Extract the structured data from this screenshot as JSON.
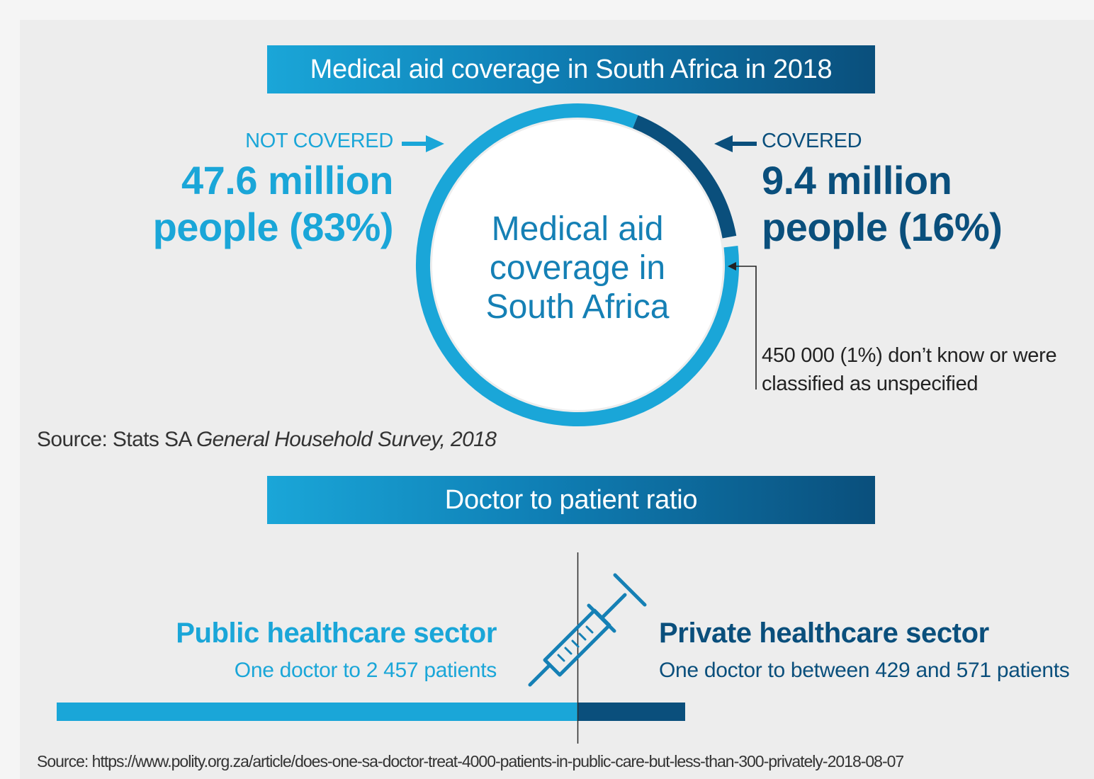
{
  "colors": {
    "light_blue": "#1aa6d8",
    "dark_blue": "#0a4f7c",
    "background": "#ededed"
  },
  "coverage": {
    "banner_title": "Medical aid coverage in South Africa in 2018",
    "center_label_lines": [
      "Medical aid",
      "coverage in",
      "South Africa"
    ],
    "not_covered": {
      "label": "NOT COVERED",
      "line1": "47.6 million",
      "line2": "people (83%)"
    },
    "covered": {
      "label": "COVERED",
      "line1": "9.4 million",
      "line2": "people (16%)"
    },
    "unspecified_note_lines": [
      "450 000 (1%) don’t know or were",
      "classified as unspecified"
    ],
    "source_prefix": "Source: Stats SA ",
    "source_title": "General Household Survey, 2018"
  },
  "ratio": {
    "banner_title": "Doctor to patient ratio",
    "public": {
      "title": "Public healthcare sector",
      "subtitle": "One doctor to 2 457 patients"
    },
    "private": {
      "title": "Private healthcare sector",
      "subtitle": "One doctor to between 429 and 571 patients"
    },
    "source": "Source: https://www.polity.org.za/article/does-one-sa-doctor-treat-4000-patients-in-public-care-but-less-than-300-privately-2018-08-07"
  },
  "chart_data": [
    {
      "type": "pie",
      "variant": "donut",
      "categories": [
        "Not covered",
        "Covered",
        "Unspecified"
      ],
      "values": [
        83,
        16,
        1
      ]
    }
  ]
}
